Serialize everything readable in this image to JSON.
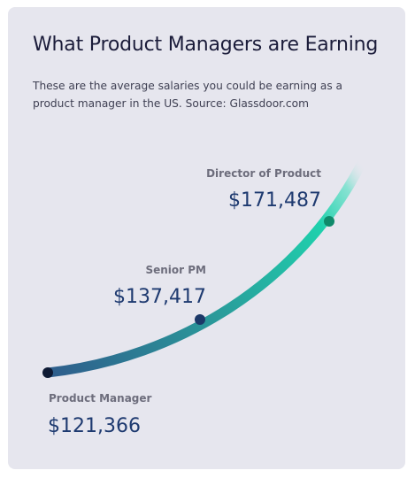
{
  "card": {
    "title": "What Product Managers are Earning",
    "subtitle": "These are the average salaries you could be earning as a product manager in the US. Source: Glassdoor.com"
  },
  "chart_data": {
    "type": "line",
    "title": "What Product Managers are Earning",
    "subtitle": "These are the average salaries you could be earning as a product manager in the US. Source: Glassdoor.com",
    "xlabel": "",
    "ylabel": "",
    "grid": false,
    "categories": [
      "Product Manager",
      "Senior PM",
      "Director of Product"
    ],
    "values": [
      121366,
      137417,
      171487
    ],
    "value_labels": [
      "$121,366",
      "$137,417",
      "$171,487"
    ],
    "colors": {
      "curve_start": "#2e5d8c",
      "curve_end": "#1fd1ad",
      "marker_low": "#0e1a34",
      "marker_mid": "#1c3868",
      "marker_high": "#0f8a6a",
      "label": "#6d6d7c",
      "value": "#1e3a70"
    }
  }
}
